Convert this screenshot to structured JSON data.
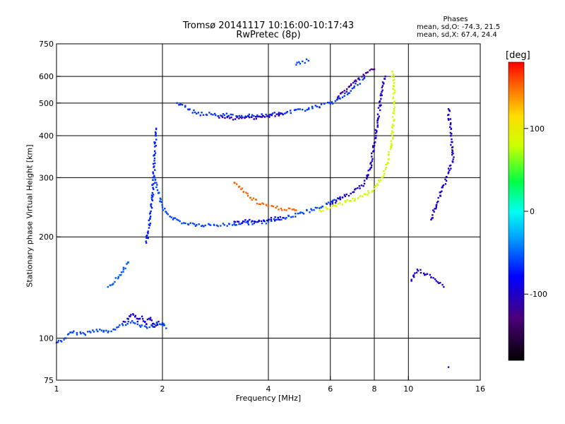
{
  "header": {
    "title": "Tromsø 20141117 10:16:00-10:17:43",
    "subtitle": "RwPretec (8p)"
  },
  "stats": {
    "heading": "Phases",
    "line_o": "mean, sd,O: -74.3, 21.5",
    "line_x": "mean, sd,X:  67.4, 24.4"
  },
  "colorbar": {
    "label": "[deg]",
    "range": [
      -180,
      180
    ],
    "ticks": [
      {
        "value": 100,
        "label": "100"
      },
      {
        "value": 0,
        "label": "0"
      },
      {
        "value": -100,
        "label": "-100"
      }
    ]
  },
  "chart_data": {
    "type": "scatter",
    "xlabel": "Frequency [MHz]",
    "ylabel": "Stationary phase Virtual Height [km]",
    "x_scale": "log",
    "y_scale": "log",
    "xlim": [
      1,
      16
    ],
    "ylim": [
      75,
      750
    ],
    "x_ticks": [
      1,
      2,
      4,
      6,
      8,
      10,
      16
    ],
    "y_ticks": [
      75,
      100,
      200,
      300,
      400,
      500,
      600,
      750
    ],
    "x_grid": [
      2,
      4,
      6,
      8,
      10
    ],
    "y_grid": [
      100,
      200,
      300,
      400,
      500,
      600
    ],
    "grid": true,
    "traces": [
      {
        "points": [
          [
            1.0,
            97
          ],
          [
            1.05,
            99
          ],
          [
            1.1,
            104
          ],
          [
            1.2,
            103
          ],
          [
            1.3,
            106
          ],
          [
            1.4,
            104
          ],
          [
            1.5,
            108
          ],
          [
            1.6,
            112
          ],
          [
            1.7,
            110
          ],
          [
            1.8,
            108
          ],
          [
            1.9,
            110
          ],
          [
            2.0,
            111
          ],
          [
            2.05,
            107
          ]
        ],
        "phase": -60
      },
      {
        "points": [
          [
            1.55,
            112
          ],
          [
            1.6,
            114
          ],
          [
            1.65,
            118
          ],
          [
            1.7,
            112
          ],
          [
            1.75,
            116
          ],
          [
            1.8,
            110
          ],
          [
            1.85,
            115
          ],
          [
            1.9,
            108
          ],
          [
            1.95,
            112
          ]
        ],
        "phase": -95
      },
      {
        "points": [
          [
            1.4,
            142
          ],
          [
            1.5,
            152
          ],
          [
            1.55,
            160
          ],
          [
            1.6,
            168
          ]
        ],
        "phase": -55
      },
      {
        "points": [
          [
            1.8,
            192
          ],
          [
            1.82,
            205
          ],
          [
            1.85,
            230
          ],
          [
            1.88,
            280
          ],
          [
            1.9,
            350
          ],
          [
            1.92,
            420
          ]
        ],
        "phase": -70
      },
      {
        "points": [
          [
            1.9,
            300
          ],
          [
            1.95,
            270
          ],
          [
            2.0,
            245
          ],
          [
            2.1,
            230
          ],
          [
            2.3,
            220
          ],
          [
            2.6,
            216
          ],
          [
            3.0,
            217
          ],
          [
            3.5,
            220
          ],
          [
            4.0,
            222
          ],
          [
            4.5,
            228
          ],
          [
            5.0,
            236
          ],
          [
            5.5,
            244
          ],
          [
            6.0,
            252
          ],
          [
            6.5,
            262
          ]
        ],
        "phase": -60
      },
      {
        "points": [
          [
            3.2,
            222
          ],
          [
            3.6,
            223
          ],
          [
            4.0,
            225
          ],
          [
            4.4,
            228
          ]
        ],
        "phase": -90
      },
      {
        "points": [
          [
            6.0,
            250
          ],
          [
            6.5,
            262
          ],
          [
            7.0,
            272
          ],
          [
            7.5,
            288
          ],
          [
            7.8,
            320
          ],
          [
            8.0,
            380
          ],
          [
            8.2,
            450
          ],
          [
            8.4,
            540
          ],
          [
            8.6,
            600
          ]
        ],
        "phase": -100
      },
      {
        "points": [
          [
            5.6,
            240
          ],
          [
            6.2,
            248
          ],
          [
            6.8,
            256
          ],
          [
            7.4,
            264
          ],
          [
            8.0,
            278
          ],
          [
            8.4,
            300
          ],
          [
            8.8,
            340
          ],
          [
            9.0,
            400
          ],
          [
            9.1,
            480
          ],
          [
            9.1,
            560
          ],
          [
            9.0,
            620
          ]
        ],
        "phase": 85
      },
      {
        "points": [
          [
            3.2,
            290
          ],
          [
            3.5,
            265
          ],
          [
            3.8,
            250
          ],
          [
            4.2,
            244
          ],
          [
            4.8,
            240
          ]
        ],
        "phase": 150
      },
      {
        "points": [
          [
            2.2,
            500
          ],
          [
            2.5,
            465
          ],
          [
            3.0,
            460
          ],
          [
            3.5,
            458
          ],
          [
            4.0,
            460
          ],
          [
            4.5,
            468
          ],
          [
            5.0,
            478
          ],
          [
            5.5,
            488
          ],
          [
            6.0,
            498
          ],
          [
            6.5,
            520
          ],
          [
            7.0,
            555
          ],
          [
            7.5,
            595
          ]
        ],
        "phase": -65
      },
      {
        "points": [
          [
            2.9,
            452
          ],
          [
            3.3,
            450
          ],
          [
            3.8,
            455
          ],
          [
            4.4,
            462
          ]
        ],
        "phase": -110
      },
      {
        "points": [
          [
            6.3,
            520
          ],
          [
            6.8,
            560
          ],
          [
            7.2,
            590
          ],
          [
            7.6,
            615
          ],
          [
            8.0,
            630
          ]
        ],
        "phase": -120
      },
      {
        "points": [
          [
            4.8,
            650
          ],
          [
            5.0,
            665
          ],
          [
            5.2,
            668
          ]
        ],
        "phase": -60
      },
      {
        "points": [
          [
            10.2,
            148
          ],
          [
            10.6,
            160
          ],
          [
            12.0,
            148
          ],
          [
            12.6,
            142
          ],
          [
            13.0,
            480
          ],
          [
            13.2,
            400
          ],
          [
            13.4,
            340
          ],
          [
            12.0,
            248
          ],
          [
            11.6,
            225
          ],
          [
            13.0,
            82
          ]
        ],
        "phase": -100
      }
    ]
  }
}
